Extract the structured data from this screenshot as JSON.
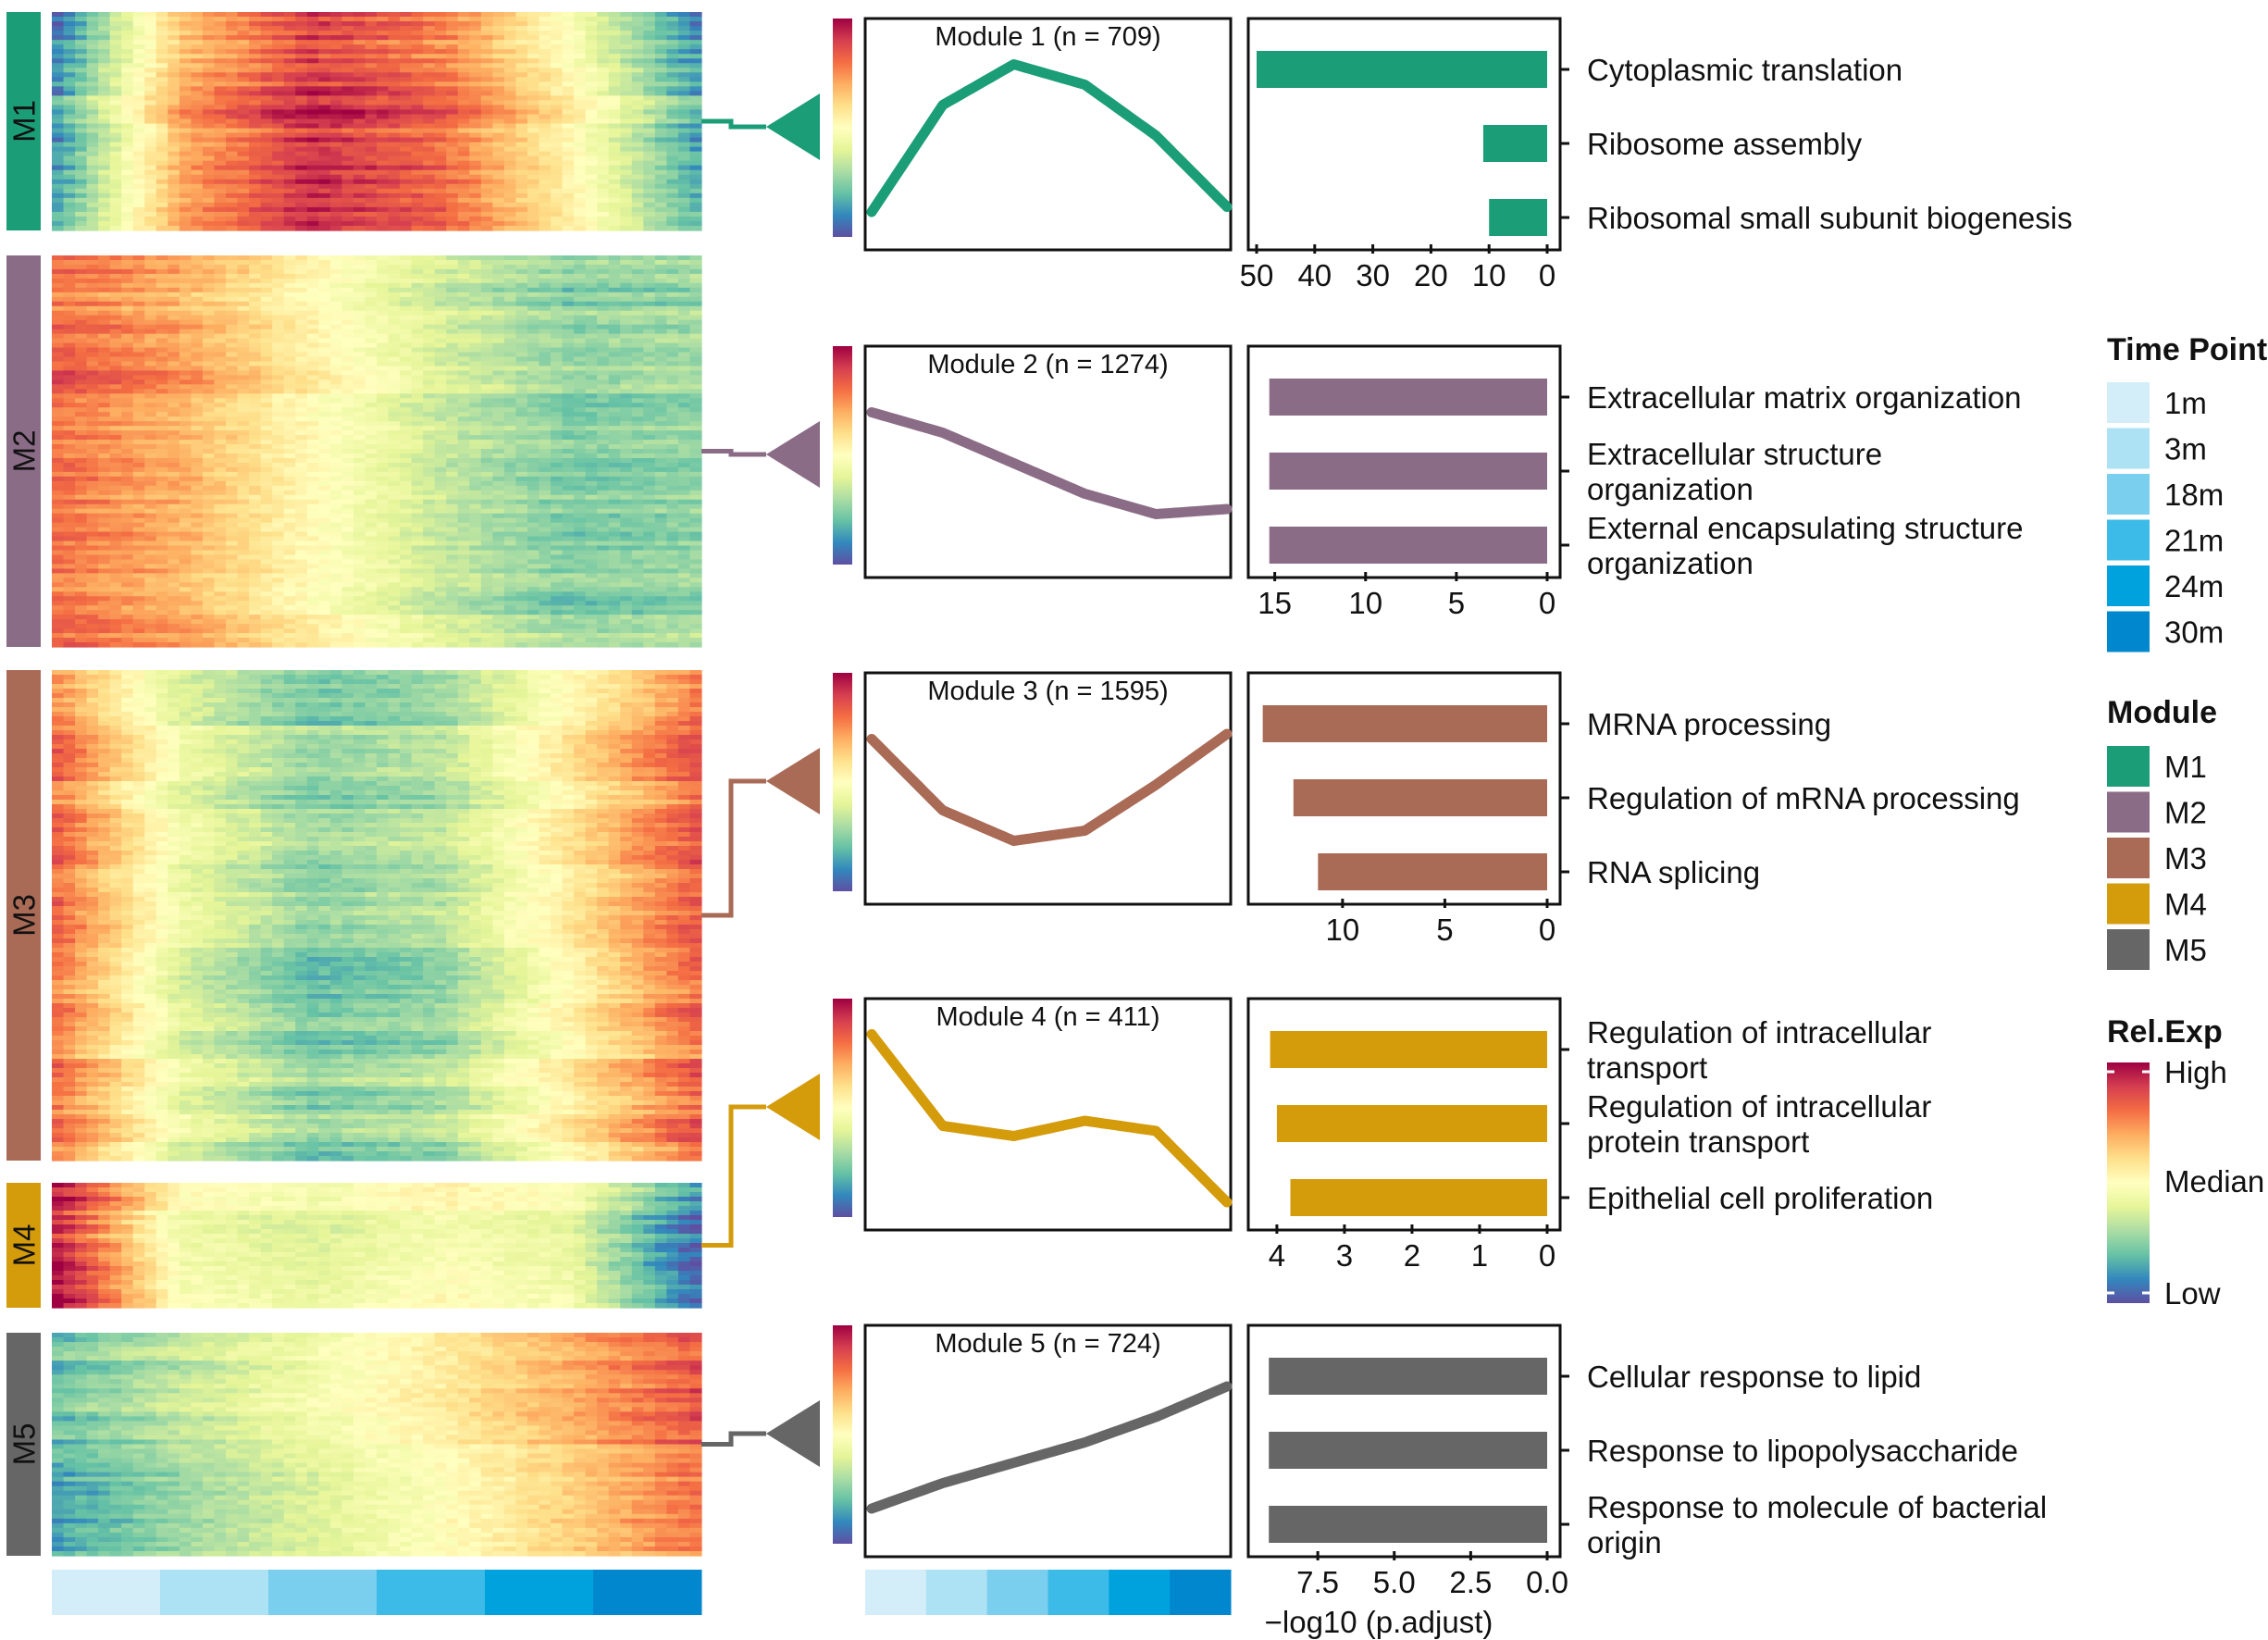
{
  "chart_data": {
    "type": "heatmap",
    "modules": [
      {
        "id": "M1",
        "title": "Module 1 (n = 709)",
        "color": "#1b9e77",
        "n": 709,
        "trend": [
          -0.7,
          0.35,
          0.75,
          0.55,
          0.05,
          -0.65
        ],
        "go_terms": [
          "Cytoplasmic translation",
          "Ribosome assembly",
          "Ribosomal small subunit biogenesis"
        ],
        "go_values": [
          50,
          11,
          10
        ],
        "xlim": [
          0,
          50
        ],
        "ticks": [
          "50",
          "40",
          "30",
          "20",
          "10",
          "0"
        ],
        "tick_values": [
          50,
          40,
          30,
          20,
          10,
          0
        ]
      },
      {
        "id": "M2",
        "title": "Module 2 (n = 1274)",
        "color": "#8b6c87",
        "n": 1274,
        "trend": [
          0.55,
          0.35,
          0.05,
          -0.25,
          -0.45,
          -0.4
        ],
        "go_terms": [
          "Extracellular matrix organization",
          "Extracellular structure organization",
          "External encapsulating structure organization"
        ],
        "go_labels": [
          [
            "Extracellular matrix organization"
          ],
          [
            "Extracellular structure",
            "organization"
          ],
          [
            "External encapsulating structure",
            "organization"
          ]
        ],
        "go_values": [
          15.3,
          15.3,
          15.3
        ],
        "xlim": [
          0,
          16
        ],
        "ticks": [
          "15",
          "10",
          "5",
          "0"
        ],
        "tick_values": [
          15,
          10,
          5,
          0
        ]
      },
      {
        "id": "M3",
        "title": "Module 3 (n = 1595)",
        "color": "#a96a56",
        "n": 1595,
        "trend": [
          0.55,
          -0.15,
          -0.45,
          -0.35,
          0.1,
          0.6
        ],
        "go_terms": [
          "MRNA processing",
          "Regulation of mRNA processing",
          "RNA splicing"
        ],
        "go_values": [
          13.9,
          12.4,
          11.2
        ],
        "xlim": [
          0,
          14.2
        ],
        "ticks": [
          "10",
          "5",
          "0"
        ],
        "tick_values": [
          10,
          5,
          0
        ]
      },
      {
        "id": "M4",
        "title": "Module 4 (n = 411)",
        "color": "#d49b0b",
        "n": 411,
        "trend": [
          0.85,
          -0.05,
          -0.15,
          0.0,
          -0.1,
          -0.8
        ],
        "go_terms": [
          "Regulation of intracellular transport",
          "Regulation of intracellular protein transport",
          "Epithelial cell proliferation"
        ],
        "go_labels": [
          [
            "Regulation of intracellular",
            "transport"
          ],
          [
            "Regulation of intracellular",
            "protein transport"
          ],
          [
            "Epithelial cell proliferation"
          ]
        ],
        "go_values": [
          4.1,
          4.0,
          3.8
        ],
        "xlim": [
          0,
          4.3
        ],
        "ticks": [
          "4",
          "3",
          "2",
          "1",
          "0"
        ],
        "tick_values": [
          4,
          3,
          2,
          1,
          0
        ]
      },
      {
        "id": "M5",
        "title": "Module 5 (n = 724)",
        "color": "#666666",
        "n": 724,
        "trend": [
          -0.6,
          -0.35,
          -0.15,
          0.05,
          0.3,
          0.6
        ],
        "go_terms": [
          "Cellular response to lipid",
          "Response to lipopolysaccharide",
          "Response to molecule of bacterial origin"
        ],
        "go_labels": [
          [
            "Cellular response to lipid"
          ],
          [
            "Response to lipopolysaccharide"
          ],
          [
            "Response to molecule of bacterial",
            "origin"
          ]
        ],
        "go_values": [
          9.1,
          9.1,
          9.1
        ],
        "xlim": [
          0,
          9.5
        ],
        "ticks": [
          "7.5",
          "5.0",
          "2.5",
          "0.0"
        ],
        "tick_values": [
          7.5,
          5.0,
          2.5,
          0.0
        ]
      }
    ],
    "xlabel": "−log10 (p.adjust)",
    "time_points": [
      {
        "label": "1m",
        "color": "#d3eef8"
      },
      {
        "label": "3m",
        "color": "#ade1f4"
      },
      {
        "label": "18m",
        "color": "#7acfee"
      },
      {
        "label": "21m",
        "color": "#3dbbe8"
      },
      {
        "label": "24m",
        "color": "#00a2de"
      },
      {
        "label": "30m",
        "color": "#0087cd"
      }
    ],
    "rel_exp": {
      "high": "High",
      "median": "Median",
      "low": "Low"
    },
    "legend": {
      "time_title": "Time Point",
      "module_title": "Module",
      "rel_title": "Rel.Exp"
    }
  }
}
